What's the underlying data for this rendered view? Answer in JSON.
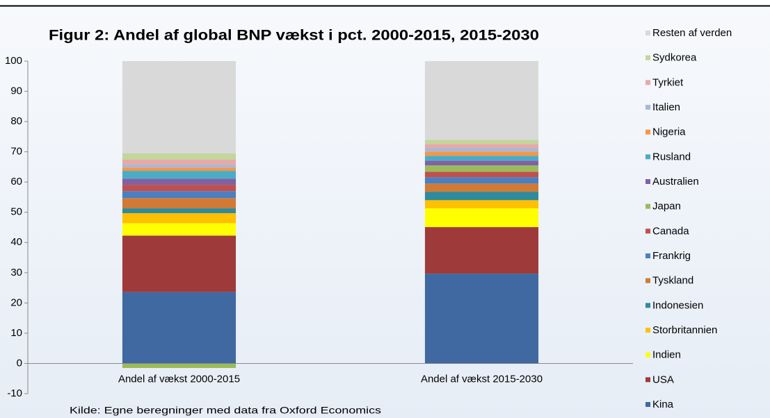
{
  "chart_data": {
    "type": "stacked_bar",
    "title": "Figur 2: Andel af global BNP vækst i pct. 2000-2015, 2015-2030",
    "source": "Kilde: Egne beregninger med data fra Oxford Economics",
    "categories": [
      "Andel af vækst 2000-2015",
      "Andel af vækst 2015-2030"
    ],
    "series": [
      {
        "name": "Kina",
        "color": "#3f69a0",
        "values": [
          23.6,
          29.7
        ]
      },
      {
        "name": "USA",
        "color": "#9e3b3a",
        "values": [
          18.7,
          15.4
        ]
      },
      {
        "name": "Indien",
        "color": "#ffff00",
        "values": [
          4.1,
          6.2
        ]
      },
      {
        "name": "Storbritannien",
        "color": "#ffc000",
        "values": [
          3.3,
          2.7
        ]
      },
      {
        "name": "Indonesien",
        "color": "#2f8a9c",
        "values": [
          1.6,
          2.8
        ]
      },
      {
        "name": "Tyskland",
        "color": "#d07a35",
        "values": [
          3.4,
          2.7
        ]
      },
      {
        "name": "Frankrig",
        "color": "#4a7fc1",
        "values": [
          2.3,
          2.1
        ]
      },
      {
        "name": "Canada",
        "color": "#c0504d",
        "values": [
          2.1,
          1.8
        ]
      },
      {
        "name": "Japan",
        "color": "#9bbb59",
        "values": [
          -1.5,
          2.1
        ]
      },
      {
        "name": "Australien",
        "color": "#7f62a3",
        "values": [
          2.0,
          1.6
        ]
      },
      {
        "name": "Rusland",
        "color": "#4bacc6",
        "values": [
          2.6,
          1.6
        ]
      },
      {
        "name": "Nigeria",
        "color": "#f79646",
        "values": [
          1.1,
          1.4
        ]
      },
      {
        "name": "Italien",
        "color": "#a8b8d8",
        "values": [
          1.0,
          1.2
        ]
      },
      {
        "name": "Tyrkiet",
        "color": "#e6a9a8",
        "values": [
          1.6,
          1.3
        ]
      },
      {
        "name": "Sydkorea",
        "color": "#c3d69b",
        "values": [
          2.1,
          1.4
        ]
      },
      {
        "name": "Resten af verden",
        "color": "#d9d9d9",
        "values": [
          30.5,
          26.0
        ]
      }
    ],
    "ylim": [
      -10,
      100
    ],
    "yticks": [
      -10,
      0,
      10,
      20,
      30,
      40,
      50,
      60,
      70,
      80,
      90,
      100
    ],
    "legend": "right"
  }
}
